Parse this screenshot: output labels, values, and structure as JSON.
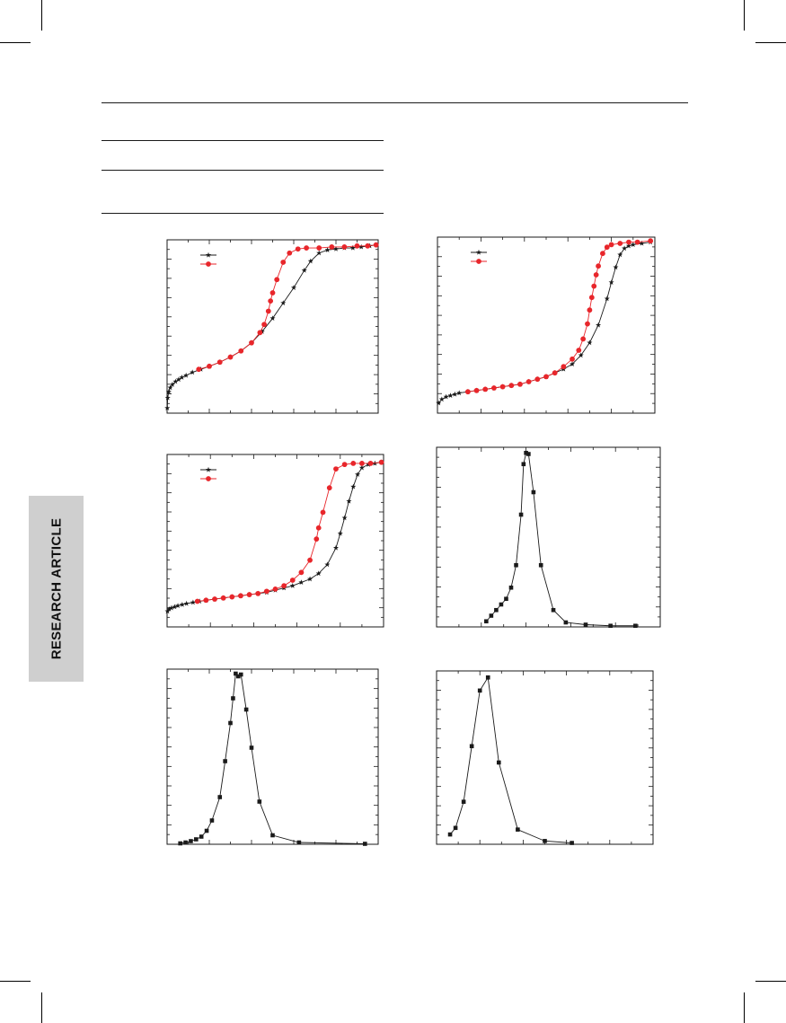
{
  "side_tab": {
    "label": "RESEARCH ARTICLE"
  },
  "colors": {
    "black_series": "#1a1a1a",
    "red_series": "#e8262b",
    "tab_bg": "#cfcfcf"
  },
  "chart_data": [
    {
      "id": "isotherm-a",
      "type": "line",
      "markers": [
        "star",
        "circle"
      ],
      "legend_position": "top-left",
      "series": [
        {
          "name": "",
          "color": "#1a1a1a",
          "marker": "star",
          "points": [
            [
              0.001,
              5
            ],
            [
              0.003,
              15
            ],
            [
              0.008,
              21
            ],
            [
              0.015,
              25
            ],
            [
              0.025,
              28
            ],
            [
              0.04,
              31
            ],
            [
              0.055,
              33
            ],
            [
              0.07,
              35
            ],
            [
              0.09,
              37
            ],
            [
              0.12,
              40
            ],
            [
              0.16,
              43
            ],
            [
              0.2,
              46
            ],
            [
              0.25,
              50
            ],
            [
              0.3,
              55
            ],
            [
              0.35,
              61
            ],
            [
              0.4,
              69
            ],
            [
              0.45,
              80
            ],
            [
              0.5,
              93
            ],
            [
              0.55,
              108
            ],
            [
              0.6,
              123
            ],
            [
              0.65,
              140
            ],
            [
              0.68,
              149
            ],
            [
              0.72,
              157
            ],
            [
              0.76,
              160
            ],
            [
              0.8,
              161
            ],
            [
              0.84,
              162
            ],
            [
              0.88,
              162
            ],
            [
              0.92,
              163
            ],
            [
              0.96,
              164
            ],
            [
              0.99,
              165
            ]
          ]
        },
        {
          "name": "",
          "color": "#e8262b",
          "marker": "circle",
          "points": [
            [
              0.15,
              43
            ],
            [
              0.2,
              46
            ],
            [
              0.25,
              50
            ],
            [
              0.3,
              55
            ],
            [
              0.35,
              61
            ],
            [
              0.4,
              69
            ],
            [
              0.44,
              79
            ],
            [
              0.46,
              87
            ],
            [
              0.48,
              100
            ],
            [
              0.49,
              110
            ],
            [
              0.5,
              118
            ],
            [
              0.52,
              131
            ],
            [
              0.55,
              148
            ],
            [
              0.58,
              157
            ],
            [
              0.62,
              161
            ],
            [
              0.66,
              162
            ],
            [
              0.72,
              162
            ],
            [
              0.78,
              163
            ],
            [
              0.84,
              163
            ],
            [
              0.9,
              164
            ],
            [
              0.95,
              164
            ],
            [
              0.99,
              165
            ]
          ]
        }
      ],
      "xlim": [
        0,
        1
      ],
      "ylim": [
        0,
        170
      ]
    },
    {
      "id": "isotherm-b",
      "type": "line",
      "markers": [
        "star",
        "circle"
      ],
      "legend_position": "top-left",
      "series": [
        {
          "name": "",
          "color": "#1a1a1a",
          "marker": "star",
          "points": [
            [
              0.005,
              8
            ],
            [
              0.02,
              11
            ],
            [
              0.04,
              13
            ],
            [
              0.06,
              14
            ],
            [
              0.08,
              15
            ],
            [
              0.1,
              16
            ],
            [
              0.14,
              17
            ],
            [
              0.18,
              18
            ],
            [
              0.22,
              19
            ],
            [
              0.26,
              20
            ],
            [
              0.3,
              21
            ],
            [
              0.34,
              22
            ],
            [
              0.38,
              23
            ],
            [
              0.42,
              25
            ],
            [
              0.46,
              27
            ],
            [
              0.5,
              29
            ],
            [
              0.54,
              32
            ],
            [
              0.58,
              35
            ],
            [
              0.62,
              39
            ],
            [
              0.66,
              46
            ],
            [
              0.7,
              56
            ],
            [
              0.74,
              70
            ],
            [
              0.78,
              91
            ],
            [
              0.8,
              104
            ],
            [
              0.82,
              116
            ],
            [
              0.84,
              126
            ],
            [
              0.86,
              131
            ],
            [
              0.88,
              133
            ],
            [
              0.9,
              134
            ],
            [
              0.94,
              135
            ],
            [
              0.98,
              136
            ]
          ]
        },
        {
          "name": "",
          "color": "#e8262b",
          "marker": "circle",
          "points": [
            [
              0.14,
              17
            ],
            [
              0.18,
              18
            ],
            [
              0.22,
              19
            ],
            [
              0.26,
              20
            ],
            [
              0.3,
              21
            ],
            [
              0.34,
              22
            ],
            [
              0.38,
              23
            ],
            [
              0.42,
              25
            ],
            [
              0.46,
              27
            ],
            [
              0.5,
              29
            ],
            [
              0.54,
              32
            ],
            [
              0.58,
              37
            ],
            [
              0.62,
              43
            ],
            [
              0.65,
              50
            ],
            [
              0.67,
              59
            ],
            [
              0.69,
              71
            ],
            [
              0.7,
              82
            ],
            [
              0.71,
              92
            ],
            [
              0.72,
              101
            ],
            [
              0.73,
              110
            ],
            [
              0.74,
              117
            ],
            [
              0.76,
              127
            ],
            [
              0.78,
              132
            ],
            [
              0.8,
              134
            ],
            [
              0.84,
              135
            ],
            [
              0.88,
              136
            ],
            [
              0.92,
              136
            ],
            [
              0.98,
              137
            ]
          ]
        }
      ],
      "xlim": [
        0,
        1
      ],
      "ylim": [
        0,
        140
      ]
    },
    {
      "id": "isotherm-c",
      "type": "line",
      "markers": [
        "star",
        "circle"
      ],
      "legend_position": "top-left",
      "series": [
        {
          "name": "",
          "color": "#1a1a1a",
          "marker": "star",
          "points": [
            [
              0.002,
              14
            ],
            [
              0.01,
              16
            ],
            [
              0.02,
              17
            ],
            [
              0.035,
              18
            ],
            [
              0.05,
              19
            ],
            [
              0.07,
              20
            ],
            [
              0.09,
              21
            ],
            [
              0.12,
              22
            ],
            [
              0.15,
              23
            ],
            [
              0.18,
              24
            ],
            [
              0.22,
              25
            ],
            [
              0.26,
              26
            ],
            [
              0.3,
              27
            ],
            [
              0.34,
              28
            ],
            [
              0.38,
              29
            ],
            [
              0.42,
              30
            ],
            [
              0.46,
              31
            ],
            [
              0.5,
              33
            ],
            [
              0.54,
              35
            ],
            [
              0.58,
              37
            ],
            [
              0.62,
              40
            ],
            [
              0.66,
              43
            ],
            [
              0.7,
              48
            ],
            [
              0.74,
              56
            ],
            [
              0.78,
              71
            ],
            [
              0.8,
              84
            ],
            [
              0.82,
              98
            ],
            [
              0.84,
              113
            ],
            [
              0.86,
              126
            ],
            [
              0.88,
              137
            ],
            [
              0.9,
              143
            ],
            [
              0.93,
              146
            ],
            [
              0.96,
              147
            ],
            [
              0.99,
              148
            ]
          ]
        },
        {
          "name": "",
          "color": "#e8262b",
          "marker": "circle",
          "points": [
            [
              0.14,
              23
            ],
            [
              0.18,
              24
            ],
            [
              0.22,
              25
            ],
            [
              0.26,
              26
            ],
            [
              0.3,
              27
            ],
            [
              0.34,
              28
            ],
            [
              0.38,
              29
            ],
            [
              0.42,
              30
            ],
            [
              0.46,
              32
            ],
            [
              0.5,
              34
            ],
            [
              0.54,
              37
            ],
            [
              0.58,
              42
            ],
            [
              0.62,
              49
            ],
            [
              0.66,
              60
            ],
            [
              0.69,
              79
            ],
            [
              0.7,
              89
            ],
            [
              0.72,
              103
            ],
            [
              0.75,
              125
            ],
            [
              0.78,
              142
            ],
            [
              0.82,
              146
            ],
            [
              0.86,
              147
            ],
            [
              0.9,
              147
            ],
            [
              0.94,
              147
            ],
            [
              0.99,
              148
            ]
          ]
        }
      ],
      "xlim": [
        0,
        1
      ],
      "ylim": [
        0,
        155
      ]
    },
    {
      "id": "distribution-d",
      "type": "line",
      "markers": [
        "square"
      ],
      "series": [
        {
          "name": "",
          "color": "#1a1a1a",
          "marker": "square",
          "points": [
            [
              2.0,
              0.05
            ],
            [
              2.2,
              0.1
            ],
            [
              2.4,
              0.15
            ],
            [
              2.6,
              0.2
            ],
            [
              2.8,
              0.25
            ],
            [
              3.0,
              0.35
            ],
            [
              3.2,
              0.55
            ],
            [
              3.4,
              1.0
            ],
            [
              3.5,
              1.45
            ],
            [
              3.6,
              1.55
            ],
            [
              3.7,
              1.54
            ],
            [
              3.9,
              1.2
            ],
            [
              4.2,
              0.55
            ],
            [
              4.7,
              0.15
            ],
            [
              5.2,
              0.04
            ],
            [
              6.0,
              0.02
            ],
            [
              7.0,
              0.01
            ],
            [
              8.0,
              0.01
            ]
          ]
        }
      ],
      "xlim": [
        0,
        9
      ],
      "ylim": [
        0,
        1.6
      ]
    },
    {
      "id": "distribution-e",
      "type": "line",
      "markers": [
        "square"
      ],
      "series": [
        {
          "name": "",
          "color": "#1a1a1a",
          "marker": "square",
          "points": [
            [
              2.0,
              0.02
            ],
            [
              2.2,
              0.04
            ],
            [
              2.4,
              0.07
            ],
            [
              2.6,
              0.11
            ],
            [
              2.8,
              0.17
            ],
            [
              3.0,
              0.3
            ],
            [
              3.2,
              0.53
            ],
            [
              3.5,
              1.05
            ],
            [
              3.7,
              1.85
            ],
            [
              3.9,
              2.7
            ],
            [
              4.0,
              3.25
            ],
            [
              4.1,
              3.8
            ],
            [
              4.2,
              3.74
            ],
            [
              4.3,
              3.78
            ],
            [
              4.5,
              3.0
            ],
            [
              4.7,
              2.15
            ],
            [
              5.0,
              0.95
            ],
            [
              5.5,
              0.2
            ],
            [
              6.5,
              0.04
            ],
            [
              9.0,
              0.01
            ]
          ]
        }
      ],
      "xlim": [
        1.5,
        9.5
      ],
      "ylim": [
        0,
        3.9
      ]
    },
    {
      "id": "distribution-f",
      "type": "line",
      "markers": [
        "square"
      ],
      "series": [
        {
          "name": "",
          "color": "#1a1a1a",
          "marker": "square",
          "points": [
            [
              2.5,
              0.3
            ],
            [
              2.7,
              0.5
            ],
            [
              3.0,
              1.3
            ],
            [
              3.3,
              3.0
            ],
            [
              3.6,
              4.7
            ],
            [
              3.9,
              5.1
            ],
            [
              4.3,
              2.5
            ],
            [
              5.0,
              0.45
            ],
            [
              6.0,
              0.1
            ],
            [
              7.0,
              0.04
            ]
          ]
        }
      ],
      "xlim": [
        2,
        10
      ],
      "ylim": [
        0,
        5.3
      ]
    }
  ]
}
